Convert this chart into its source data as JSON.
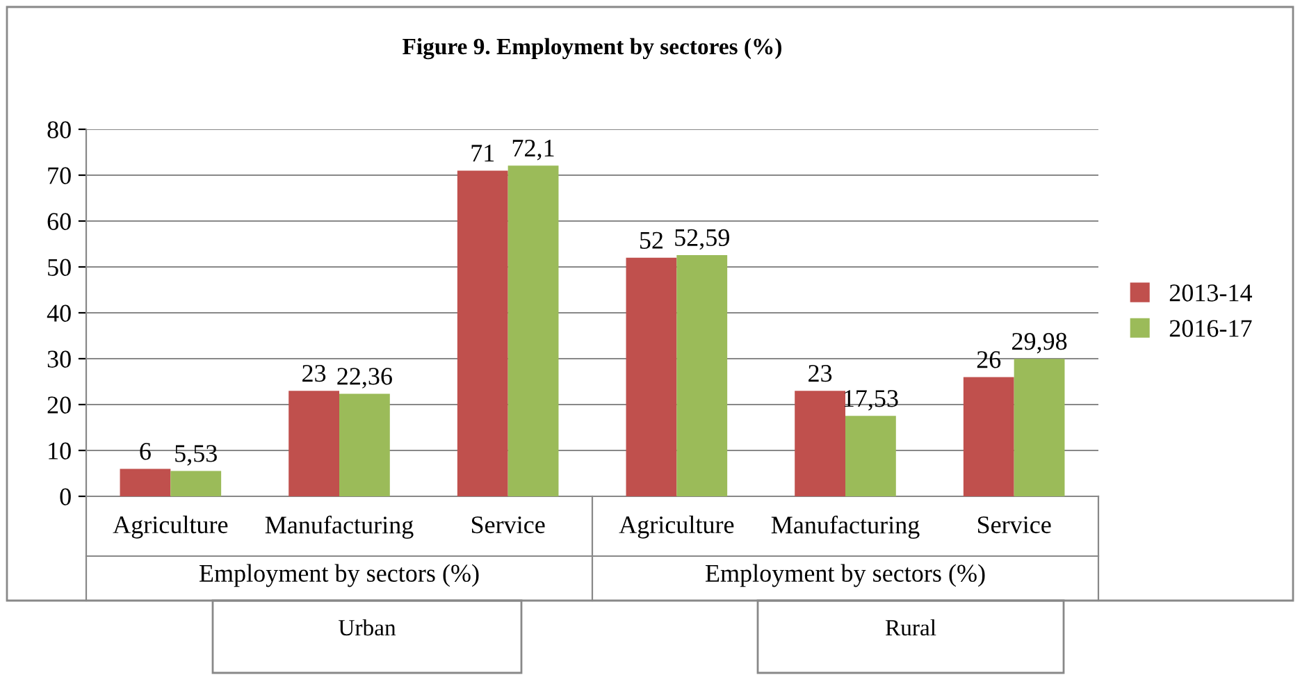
{
  "chart_data": {
    "type": "bar",
    "title": "Figure 9. Employment by sectores (%)",
    "categories": [
      "Agriculture",
      "Manufacturing",
      "Service",
      "Agriculture",
      "Manufacturing",
      "Service"
    ],
    "series": [
      {
        "name": "2013-14",
        "color": "#c0504d",
        "values": [
          6,
          23,
          71,
          52,
          23,
          26
        ],
        "value_labels": [
          "6",
          "23",
          "71",
          "52",
          "23",
          "26"
        ]
      },
      {
        "name": "2016-17",
        "color": "#9bbb59",
        "values": [
          5.53,
          22.36,
          72.1,
          52.59,
          17.53,
          29.98
        ],
        "value_labels": [
          "5,53",
          "22,36",
          "72,1",
          "52,59",
          "17,53",
          "29,98"
        ]
      }
    ],
    "ylim": [
      0,
      80
    ],
    "yticks": [
      0,
      10,
      20,
      30,
      40,
      50,
      60,
      70,
      80
    ],
    "grid": "y",
    "legend": "right",
    "annotations": [
      "Employment by sectors (%)",
      "Employment by sectors (%)",
      "Urban",
      "Rural"
    ]
  }
}
